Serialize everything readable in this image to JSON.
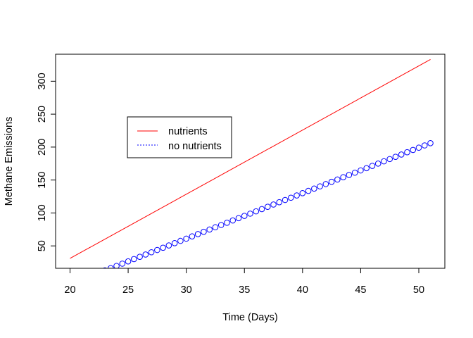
{
  "chart_data": {
    "type": "line",
    "title": "",
    "xlabel": "Time (Days)",
    "ylabel": "Methane Emissions",
    "xlim": [
      18.76,
      52.24
    ],
    "ylim": [
      16,
      341
    ],
    "xticks": [
      20,
      25,
      30,
      35,
      40,
      45,
      50
    ],
    "yticks": [
      50,
      100,
      150,
      200,
      250,
      300
    ],
    "legend_position": "upper-left inside plot",
    "grid": false,
    "series": [
      {
        "name": "nutrients",
        "style": "line",
        "color": "#ff0000",
        "line_start": [
          20,
          31
        ],
        "line_end": [
          51,
          333
        ]
      },
      {
        "name": "no nutrients",
        "style": "points",
        "marker": "open circle",
        "color": "#0000ff",
        "x_start": 20,
        "x_end": 51,
        "x_step": 0.5,
        "line_start": [
          20,
          -8
        ],
        "line_end": [
          51,
          206
        ]
      }
    ]
  }
}
